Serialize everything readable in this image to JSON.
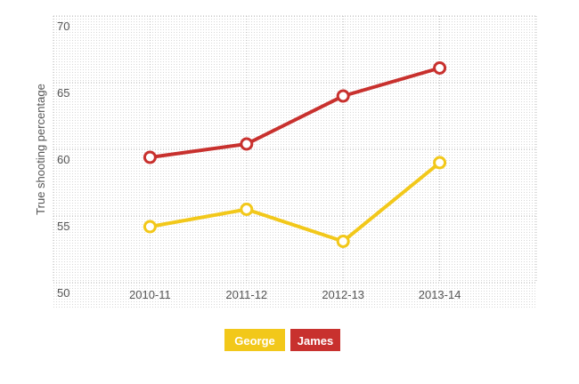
{
  "chart_data": {
    "type": "line",
    "y_label": "True shooting percentage",
    "categories": [
      "2010-11",
      "2011-12",
      "2012-13",
      "2013-14"
    ],
    "series": [
      {
        "name": "George",
        "color": "#f2c81a",
        "values": [
          54.2,
          55.5,
          53.1,
          59.0
        ]
      },
      {
        "name": "James",
        "color": "#c8312e",
        "values": [
          59.4,
          60.4,
          64.0,
          66.1
        ]
      }
    ],
    "ylim": [
      50,
      70
    ],
    "yticks": [
      50,
      55,
      60,
      65,
      70
    ],
    "grid": true
  }
}
